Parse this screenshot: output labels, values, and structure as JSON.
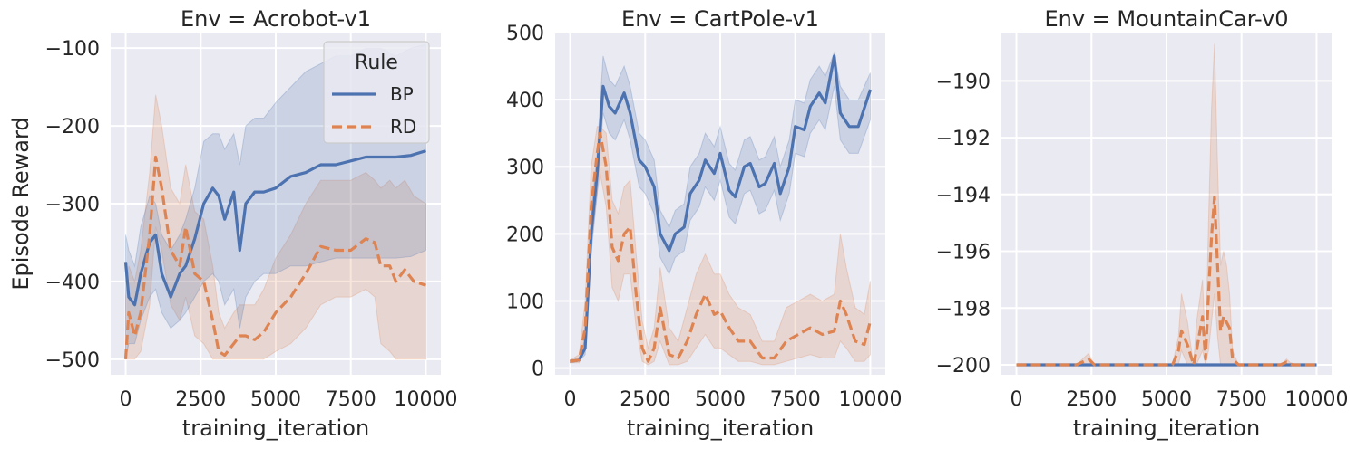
{
  "figure": {
    "ylabel": "Episode Reward",
    "legend": {
      "title": "Rule",
      "entries": [
        {
          "name": "BP",
          "color": "#4c72b0",
          "dash": "solid"
        },
        {
          "name": "RD",
          "color": "#dd8452",
          "dash": "dashed"
        }
      ],
      "placement": "top-right of first panel"
    },
    "style": {
      "background": "#eaeaf2",
      "grid": true,
      "grid_color": "#ffffff"
    }
  },
  "chart_data": [
    {
      "type": "line",
      "title": "Env = Acrobot-v1",
      "xlabel": "training_iteration",
      "ylabel": "Episode Reward",
      "xlim": [
        -500,
        10500
      ],
      "ylim": [
        -520,
        -80
      ],
      "xticks": [
        0,
        2500,
        5000,
        7500,
        10000
      ],
      "xtick_labels": [
        "0",
        "2500",
        "5000",
        "7500",
        "10000"
      ],
      "yticks": [
        -100,
        -200,
        -300,
        -400,
        -500
      ],
      "ytick_labels": [
        "−100",
        "−200",
        "−300",
        "−400",
        "−500"
      ],
      "series": [
        {
          "name": "BP",
          "color": "#4c72b0",
          "dash": "solid",
          "x": [
            0,
            100,
            300,
            500,
            800,
            1000,
            1200,
            1500,
            1800,
            2000,
            2300,
            2600,
            2900,
            3100,
            3300,
            3600,
            3800,
            4000,
            4300,
            4600,
            5000,
            5500,
            6000,
            6500,
            7000,
            7500,
            8000,
            8500,
            9000,
            9500,
            10000
          ],
          "values": [
            -375,
            -420,
            -430,
            -390,
            -350,
            -340,
            -390,
            -420,
            -390,
            -380,
            -345,
            -300,
            -280,
            -290,
            -320,
            -285,
            -360,
            -300,
            -285,
            -285,
            -280,
            -265,
            -260,
            -250,
            -250,
            -245,
            -240,
            -240,
            -240,
            -238,
            -232
          ],
          "band_low": [
            -500,
            -480,
            -480,
            -450,
            -420,
            -410,
            -440,
            -460,
            -450,
            -440,
            -420,
            -400,
            -390,
            -400,
            -430,
            -410,
            -460,
            -420,
            -400,
            -390,
            -390,
            -380,
            -380,
            -375,
            -370,
            -370,
            -370,
            -370,
            -370,
            -368,
            -360
          ],
          "band_high": [
            -340,
            -360,
            -380,
            -330,
            -290,
            -300,
            -340,
            -360,
            -340,
            -320,
            -280,
            -220,
            -210,
            -210,
            -230,
            -210,
            -250,
            -200,
            -190,
            -190,
            -170,
            -150,
            -130,
            -120,
            -110,
            -110,
            -100,
            -100,
            -110,
            -100,
            -95
          ]
        },
        {
          "name": "RD",
          "color": "#dd8452",
          "dash": "dashed",
          "x": [
            0,
            100,
            300,
            500,
            800,
            1000,
            1200,
            1500,
            1800,
            2000,
            2300,
            2600,
            2900,
            3100,
            3300,
            3600,
            3800,
            4000,
            4300,
            4600,
            5000,
            5500,
            6000,
            6500,
            7000,
            7500,
            8000,
            8300,
            8500,
            8800,
            9000,
            9300,
            9600,
            10000
          ],
          "values": [
            -500,
            -440,
            -470,
            -440,
            -340,
            -240,
            -280,
            -360,
            -380,
            -330,
            -390,
            -400,
            -450,
            -490,
            -495,
            -480,
            -470,
            -470,
            -475,
            -465,
            -440,
            -420,
            -390,
            -355,
            -360,
            -360,
            -345,
            -350,
            -380,
            -380,
            -400,
            -385,
            -400,
            -405
          ],
          "band_low": [
            -500,
            -500,
            -500,
            -490,
            -430,
            -330,
            -360,
            -430,
            -450,
            -420,
            -470,
            -480,
            -500,
            -500,
            -500,
            -500,
            -500,
            -500,
            -500,
            -500,
            -490,
            -480,
            -460,
            -430,
            -420,
            -420,
            -410,
            -420,
            -480,
            -490,
            -500,
            -500,
            -500,
            -500
          ],
          "band_high": [
            -420,
            -380,
            -400,
            -360,
            -260,
            -160,
            -200,
            -280,
            -300,
            -250,
            -310,
            -320,
            -380,
            -440,
            -460,
            -440,
            -430,
            -430,
            -430,
            -410,
            -370,
            -340,
            -300,
            -270,
            -270,
            -270,
            -260,
            -270,
            -280,
            -270,
            -280,
            -270,
            -290,
            -300
          ]
        }
      ]
    },
    {
      "type": "line",
      "title": "Env = CartPole-v1",
      "xlabel": "training_iteration",
      "ylabel": "",
      "xlim": [
        -500,
        10500
      ],
      "ylim": [
        -10,
        500
      ],
      "xticks": [
        0,
        2500,
        5000,
        7500,
        10000
      ],
      "xtick_labels": [
        "0",
        "2500",
        "5000",
        "7500",
        "10000"
      ],
      "yticks": [
        0,
        100,
        200,
        300,
        400,
        500
      ],
      "ytick_labels": [
        "0",
        "100",
        "200",
        "300",
        "400",
        "500"
      ],
      "series": [
        {
          "name": "BP",
          "color": "#4c72b0",
          "dash": "solid",
          "x": [
            0,
            300,
            500,
            700,
            900,
            1100,
            1300,
            1500,
            1800,
            2000,
            2300,
            2500,
            2800,
            3000,
            3300,
            3500,
            3800,
            4000,
            4300,
            4500,
            4800,
            5000,
            5300,
            5500,
            5800,
            6000,
            6300,
            6500,
            6800,
            7000,
            7300,
            7500,
            7800,
            8000,
            8300,
            8500,
            8800,
            9000,
            9300,
            9600,
            10000
          ],
          "values": [
            10,
            12,
            30,
            200,
            290,
            420,
            390,
            380,
            410,
            380,
            310,
            300,
            270,
            200,
            175,
            200,
            210,
            260,
            280,
            310,
            290,
            320,
            265,
            255,
            300,
            305,
            270,
            275,
            305,
            260,
            300,
            360,
            355,
            390,
            410,
            395,
            465,
            380,
            360,
            360,
            415
          ],
          "band_low": [
            8,
            10,
            20,
            170,
            260,
            380,
            350,
            340,
            370,
            340,
            270,
            260,
            230,
            165,
            140,
            165,
            175,
            220,
            240,
            270,
            250,
            280,
            225,
            215,
            260,
            265,
            230,
            235,
            265,
            220,
            260,
            320,
            315,
            350,
            370,
            355,
            420,
            340,
            320,
            320,
            370
          ],
          "band_high": [
            12,
            14,
            45,
            230,
            320,
            465,
            430,
            420,
            450,
            420,
            350,
            340,
            310,
            235,
            210,
            235,
            245,
            300,
            320,
            350,
            330,
            360,
            305,
            295,
            340,
            345,
            310,
            315,
            345,
            300,
            340,
            400,
            395,
            430,
            450,
            435,
            470,
            420,
            400,
            400,
            440
          ]
        },
        {
          "name": "RD",
          "color": "#dd8452",
          "dash": "dashed",
          "x": [
            0,
            300,
            500,
            700,
            900,
            1000,
            1200,
            1400,
            1600,
            1800,
            2000,
            2200,
            2400,
            2600,
            2800,
            3000,
            3300,
            3600,
            3900,
            4200,
            4500,
            4800,
            5000,
            5300,
            5600,
            6000,
            6400,
            6800,
            7200,
            7600,
            8000,
            8400,
            8800,
            9000,
            9200,
            9500,
            9800,
            10000
          ],
          "values": [
            10,
            12,
            60,
            240,
            320,
            350,
            300,
            180,
            160,
            200,
            210,
            110,
            30,
            10,
            30,
            90,
            20,
            15,
            40,
            80,
            110,
            80,
            85,
            60,
            40,
            40,
            15,
            15,
            40,
            50,
            60,
            50,
            55,
            100,
            80,
            40,
            35,
            70
          ],
          "band_low": [
            8,
            8,
            30,
            180,
            260,
            290,
            240,
            120,
            100,
            140,
            140,
            60,
            10,
            5,
            10,
            40,
            5,
            5,
            10,
            30,
            50,
            30,
            30,
            20,
            10,
            10,
            5,
            5,
            10,
            15,
            20,
            15,
            15,
            40,
            30,
            10,
            10,
            20
          ],
          "band_high": [
            12,
            20,
            100,
            300,
            360,
            360,
            350,
            250,
            230,
            270,
            280,
            170,
            70,
            30,
            60,
            150,
            60,
            40,
            90,
            140,
            170,
            140,
            140,
            110,
            90,
            80,
            40,
            40,
            90,
            100,
            110,
            100,
            110,
            200,
            150,
            90,
            80,
            130
          ]
        }
      ]
    },
    {
      "type": "line",
      "title": "Env = MountainCar-v0",
      "xlabel": "training_iteration",
      "ylabel": "",
      "xlim": [
        -500,
        10500
      ],
      "ylim": [
        -200.35,
        -188.3
      ],
      "xticks": [
        0,
        2500,
        5000,
        7500,
        10000
      ],
      "xtick_labels": [
        "0",
        "2500",
        "5000",
        "7500",
        "10000"
      ],
      "yticks": [
        -190,
        -192,
        -194,
        -196,
        -198,
        -200
      ],
      "ytick_labels": [
        "−190",
        "−192",
        "−194",
        "−196",
        "−198",
        "−200"
      ],
      "series": [
        {
          "name": "BP",
          "color": "#4c72b0",
          "dash": "solid",
          "x": [
            0,
            10000
          ],
          "values": [
            -200,
            -200
          ],
          "band_low": [
            -200,
            -200
          ],
          "band_high": [
            -200,
            -200
          ]
        },
        {
          "name": "RD",
          "color": "#dd8452",
          "dash": "dashed",
          "x": [
            0,
            2000,
            2200,
            2400,
            2600,
            5200,
            5400,
            5500,
            5700,
            5900,
            6000,
            6200,
            6300,
            6400,
            6500,
            6600,
            6700,
            6800,
            6900,
            7000,
            7100,
            7200,
            7400,
            8800,
            9000,
            9200,
            10000
          ],
          "values": [
            -200,
            -200,
            -199.9,
            -199.8,
            -200,
            -200,
            -199.5,
            -198.8,
            -199.3,
            -200,
            -199.5,
            -198.3,
            -199.8,
            -197.5,
            -195.5,
            -194.1,
            -196.5,
            -198.8,
            -198.3,
            -198.5,
            -198.7,
            -199.8,
            -200,
            -200,
            -199.9,
            -200,
            -200
          ],
          "band_low": [
            -200,
            -200,
            -200,
            -200,
            -200,
            -200,
            -200,
            -199.5,
            -200,
            -200,
            -200,
            -199.5,
            -200,
            -199.5,
            -198.5,
            -197.5,
            -199,
            -200,
            -200,
            -200,
            -200,
            -200,
            -200,
            -200,
            -200,
            -200,
            -200
          ],
          "band_high": [
            -200,
            -200,
            -199.8,
            -199.6,
            -200,
            -200,
            -199,
            -197.5,
            -198.5,
            -200,
            -198.5,
            -197,
            -199.5,
            -195,
            -191,
            -188.7,
            -193,
            -196.5,
            -196,
            -196.5,
            -197.5,
            -199.5,
            -200,
            -200,
            -199.8,
            -200,
            -200
          ]
        }
      ]
    }
  ]
}
